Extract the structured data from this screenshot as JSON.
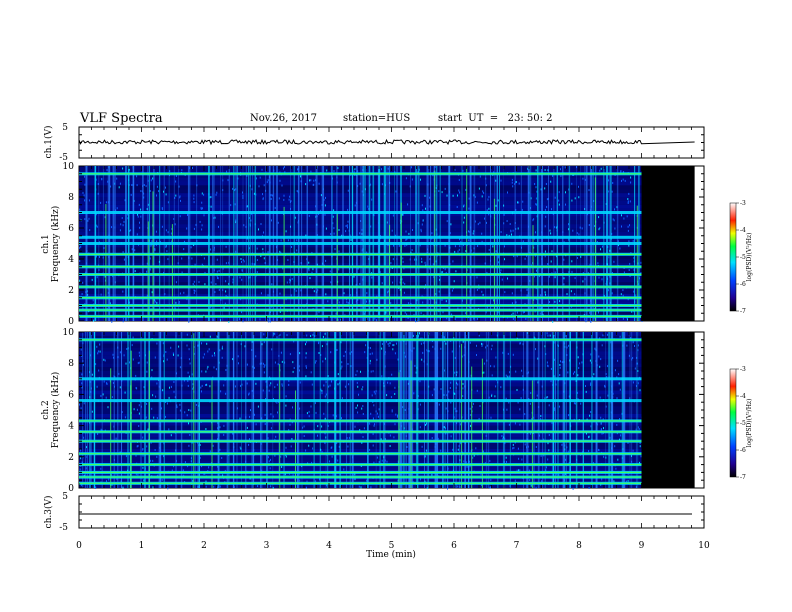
{
  "header": {
    "title": "VLF Spectra",
    "date": "Nov.26, 2017",
    "station": "station=HUS",
    "start": "start  UT  =   23: 50: 2"
  },
  "chart_data": [
    {
      "type": "line",
      "panel": "ch1-waveform",
      "ylabel": "ch.1(V)",
      "ylim": [
        -5,
        5
      ],
      "ytick_labels": [
        "5",
        "-5"
      ],
      "x_range_data_min": [
        0,
        9
      ],
      "series": [
        {
          "values_description_note": "",
          "level": 0.0,
          "constant_after_min": 9.0
        }
      ]
    },
    {
      "type": "heatmap",
      "panel": "ch1-spectrogram",
      "ylabel": "ch.1\nFrequency (kHz)",
      "ylabel_line1": "ch.1",
      "ylabel_line2": "Frequency (kHz)",
      "ylim": [
        0,
        10
      ],
      "yticks": [
        0,
        2,
        4,
        6,
        8,
        10
      ],
      "data_end_min": 9.0,
      "strong_lines_khz": [
        0.3,
        0.7,
        1.0,
        1.5,
        2.2,
        3.0,
        3.5,
        4.3,
        5.0,
        5.4,
        7.0,
        9.5
      ],
      "colorbar": {
        "label": "log(PSD)(V²/Hz)",
        "ticks": [
          "-3",
          "-4",
          "-5",
          "-6",
          "-7"
        ],
        "range": [
          -7,
          -3
        ]
      }
    },
    {
      "type": "heatmap",
      "panel": "ch2-spectrogram",
      "ylabel": "ch.2\nFrequency (kHz)",
      "ylabel_line1": "ch.2",
      "ylabel_line2": "Frequency (kHz)",
      "ylim": [
        0,
        10
      ],
      "yticks": [
        0,
        2,
        4,
        6,
        8,
        10
      ],
      "data_end_min": 9.0,
      "strong_lines_khz": [
        0.3,
        0.7,
        1.0,
        1.5,
        2.2,
        3.0,
        3.6,
        4.3,
        5.6,
        7.0,
        9.5
      ],
      "colorbar": {
        "label": "log(PSD)(V²/Hz)",
        "ticks": [
          "-3",
          "-4",
          "-5",
          "-6",
          "-7"
        ],
        "range": [
          -7,
          -3
        ]
      }
    },
    {
      "type": "line",
      "panel": "ch3-waveform",
      "ylabel": "ch.3(V)",
      "ylim": [
        -5,
        5
      ],
      "ytick_labels": [
        "5",
        "-5"
      ],
      "series": [
        {
          "level": -1.0
        }
      ]
    }
  ],
  "x_axis": {
    "xlabel": "Time (min)",
    "xlim": [
      0,
      10
    ],
    "ticks": [
      "0",
      "1",
      "2",
      "3",
      "4",
      "5",
      "6",
      "7",
      "8",
      "9",
      "10"
    ]
  },
  "colors": {
    "dark": "#000040",
    "blue": "#0010c0",
    "cyan": "#00d8ff",
    "green": "#40ff60",
    "noData": "#000000"
  }
}
